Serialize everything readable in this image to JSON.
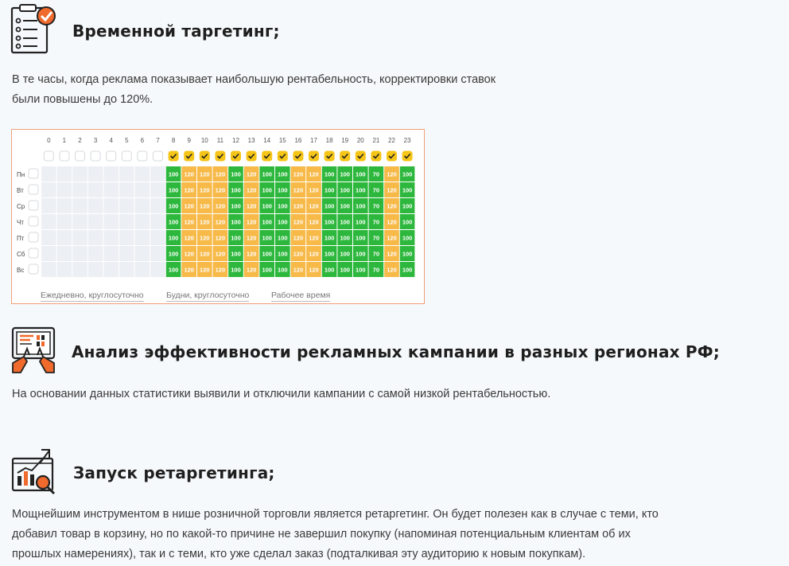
{
  "sections": [
    {
      "title": "Временной таргетинг;",
      "icon": "checklist-icon",
      "text_lines": [
        "В те часы, когда реклама показывает наибольшую рентабельность, корректировки ставок",
        "были повышены до 120%."
      ]
    },
    {
      "title": "Анализ эффективности рекламных кампании в разных регионах РФ;",
      "icon": "analytics-tablet-icon",
      "text_lines": [
        "На основании данных статистики выявили и отключили кампании с самой низкой рентабельностью."
      ]
    },
    {
      "title": "Запуск ретаргетинга;",
      "icon": "chart-magnifier-icon",
      "text_lines": [
        "Мощнейшим инструментом в нише розничной торговли является ретаргетинг. Он будет полезен как в случае с теми, кто",
        "добавил товар в корзину, но по какой-то причине не завершил покупку (напоминая потенциальным клиентам об их",
        "прошлых намерениях), так и с теми, кто уже сделал заказ (подталкивая эту аудиторию к новым покупкам)."
      ]
    }
  ],
  "schedule": {
    "hours": [
      "0",
      "1",
      "2",
      "3",
      "4",
      "5",
      "6",
      "7",
      "8",
      "9",
      "10",
      "11",
      "12",
      "13",
      "14",
      "15",
      "16",
      "17",
      "18",
      "19",
      "20",
      "21",
      "22",
      "23"
    ],
    "hours_checked": [
      false,
      false,
      false,
      false,
      false,
      false,
      false,
      false,
      true,
      true,
      true,
      true,
      true,
      true,
      true,
      true,
      true,
      true,
      true,
      true,
      true,
      true,
      true,
      true
    ],
    "days": [
      "Пн",
      "Вт",
      "Ср",
      "Чт",
      "Пт",
      "Сб",
      "Вс"
    ],
    "row_values": [
      "",
      "",
      "",
      "",
      "",
      "",
      "",
      "",
      "100",
      "120",
      "120",
      "120",
      "100",
      "120",
      "100",
      "100",
      "120",
      "120",
      "100",
      "100",
      "100",
      "70",
      "120",
      "100"
    ],
    "presets": [
      "Ежедневно, круглосуточно",
      "Будни, круглосуточно",
      "Рабочее время"
    ],
    "colors": {
      "green": "#2db83d",
      "orange": "#f7b948",
      "empty": "#eceff4",
      "check": "#f5c518",
      "border": "#f0a07a"
    }
  }
}
